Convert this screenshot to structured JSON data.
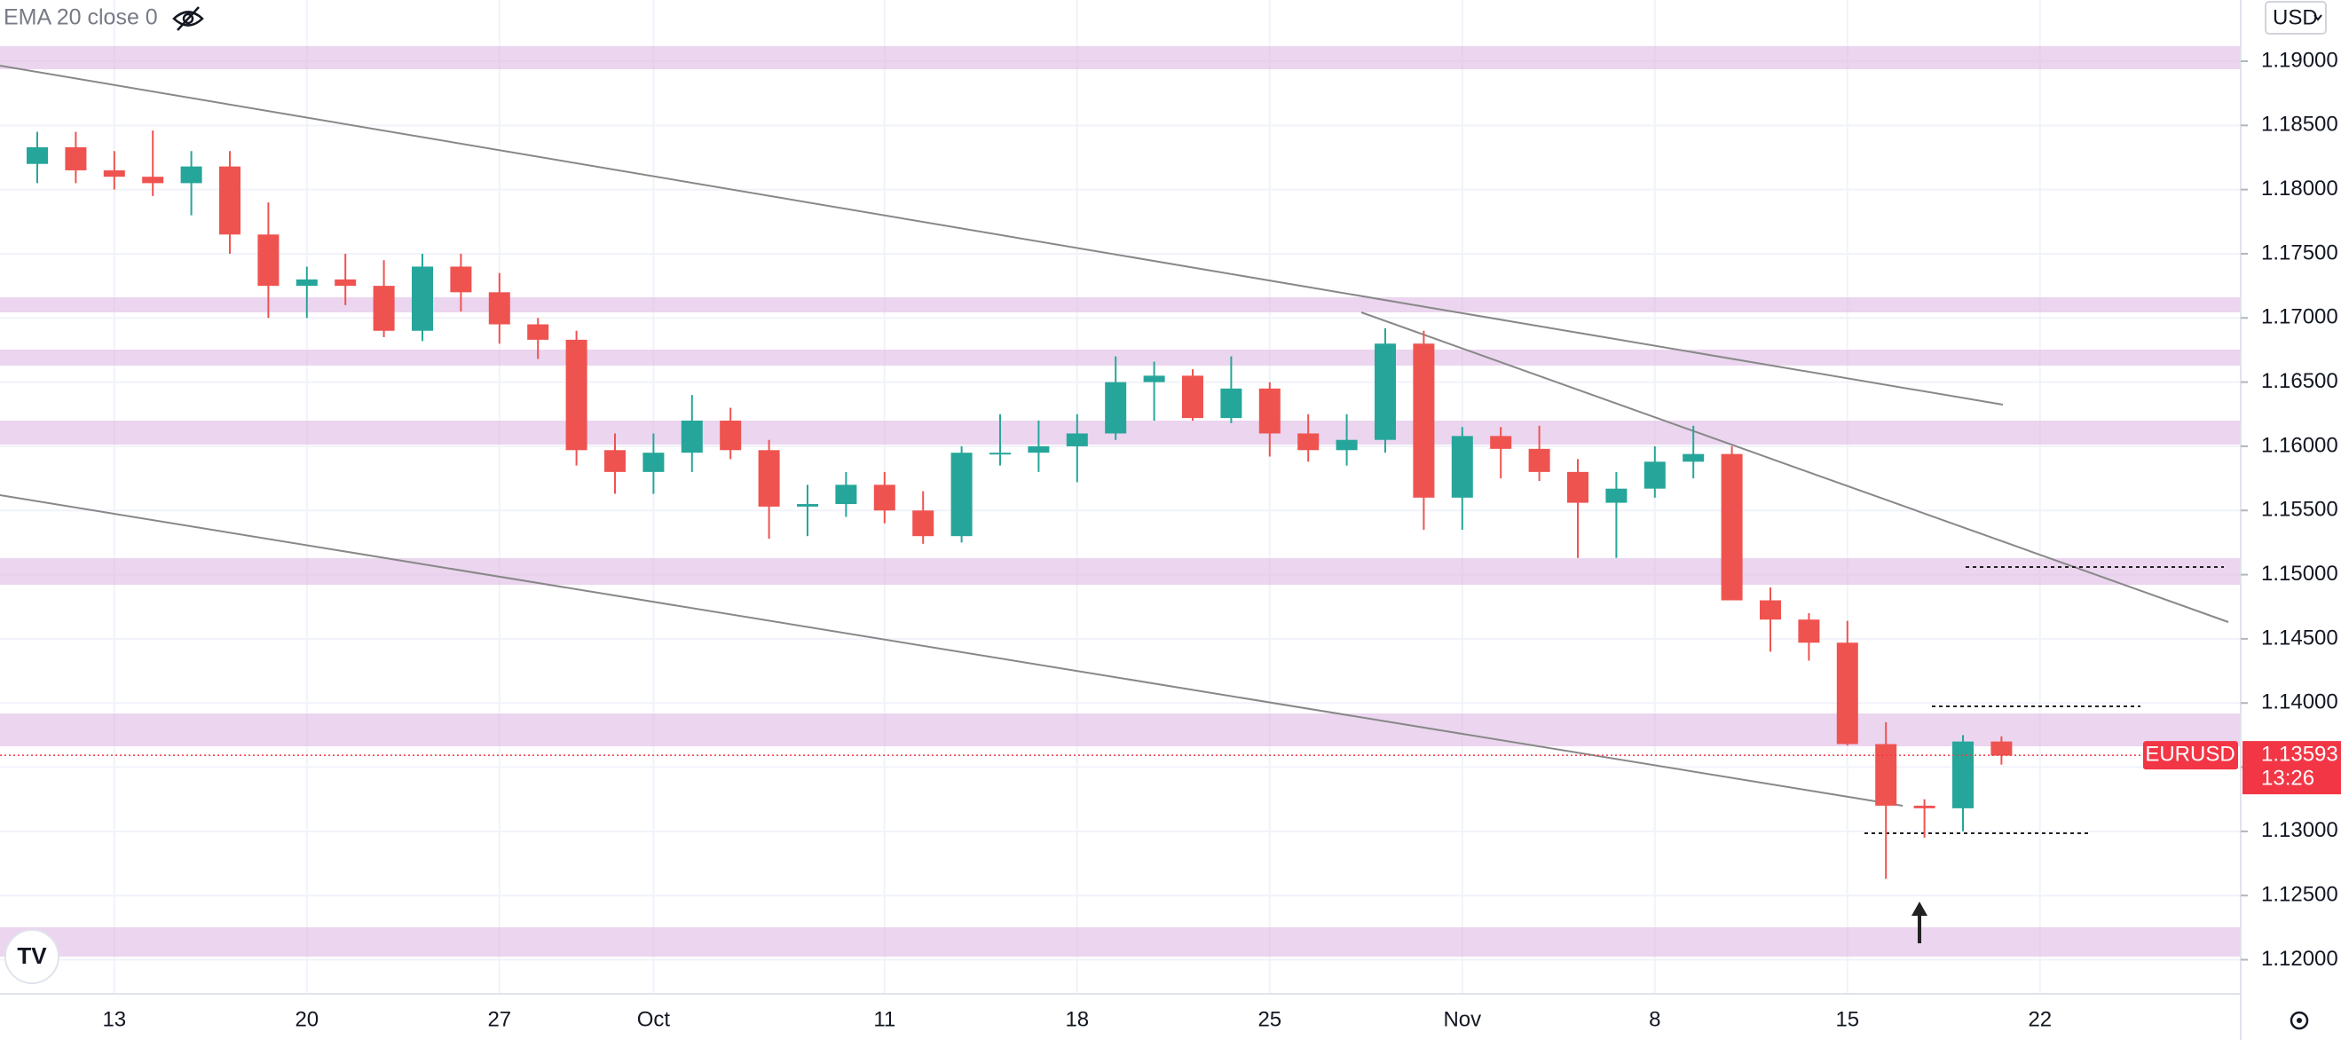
{
  "chart_data": {
    "type": "candlestick",
    "indicator": "EMA 20 close 0",
    "currency": "USD",
    "symbol": "EURUSD",
    "last_price": 1.13593,
    "countdown": "13:26",
    "up_color": "#26a69a",
    "down_color": "#ef5350",
    "categories": [
      null,
      null,
      "13",
      null,
      null,
      null,
      null,
      "20",
      null,
      null,
      null,
      null,
      "27",
      null,
      null,
      null,
      "Oct",
      null,
      null,
      null,
      null,
      null,
      "11",
      null,
      null,
      null,
      null,
      "18",
      null,
      null,
      null,
      null,
      "25",
      null,
      null,
      null,
      null,
      "Nov",
      null,
      null,
      null,
      null,
      "8",
      null,
      null,
      null,
      null,
      "15",
      null,
      null,
      null,
      null,
      "22"
    ],
    "open": [
      1.182,
      1.1833,
      1.1815,
      1.181,
      1.1805,
      1.1818,
      1.1765,
      1.1725,
      1.173,
      1.1725,
      1.169,
      1.174,
      1.172,
      1.1695,
      1.1683,
      1.1597,
      1.158,
      1.1595,
      1.162,
      1.1597,
      1.1553,
      1.1555,
      1.157,
      1.155,
      1.153,
      1.1595,
      1.1595,
      1.16,
      1.161,
      1.165,
      1.1655,
      1.1622,
      1.1645,
      1.161,
      1.1597,
      1.1605,
      1.168,
      1.156,
      1.1608,
      1.1598,
      1.158,
      1.1556,
      1.1567,
      1.1588,
      1.1594,
      1.148,
      1.1465,
      1.1447,
      1.1368,
      1.132,
      1.1318,
      1.137,
      null
    ],
    "high": [
      1.1845,
      1.1845,
      1.183,
      1.1846,
      1.183,
      1.183,
      1.179,
      1.174,
      1.175,
      1.1745,
      1.175,
      1.175,
      1.1735,
      1.17,
      1.169,
      1.161,
      1.161,
      1.164,
      1.163,
      1.1605,
      1.157,
      1.158,
      1.158,
      1.1565,
      1.16,
      1.1625,
      1.162,
      1.1625,
      1.167,
      1.1666,
      1.166,
      1.167,
      1.165,
      1.1625,
      1.1625,
      1.1692,
      1.169,
      1.1615,
      1.1615,
      1.1616,
      1.159,
      1.158,
      1.16,
      1.1616,
      1.16,
      1.149,
      1.147,
      1.1464,
      1.1385,
      1.1325,
      1.1375,
      1.1374,
      null
    ],
    "low": [
      1.1805,
      1.1805,
      1.18,
      1.1795,
      1.178,
      1.175,
      1.17,
      1.17,
      1.171,
      1.1685,
      1.1682,
      1.1705,
      1.168,
      1.1668,
      1.1585,
      1.1563,
      1.1563,
      1.158,
      1.159,
      1.1528,
      1.153,
      1.1545,
      1.154,
      1.1524,
      1.1525,
      1.1585,
      1.158,
      1.1572,
      1.1605,
      1.162,
      1.162,
      1.1618,
      1.1592,
      1.1588,
      1.1585,
      1.1595,
      1.1535,
      1.1535,
      1.1575,
      1.1573,
      1.1513,
      1.1513,
      1.156,
      1.1575,
      1.148,
      1.144,
      1.1433,
      1.1367,
      1.1263,
      1.1295,
      1.13,
      1.1352,
      null
    ],
    "close": [
      1.1833,
      1.1815,
      1.181,
      1.1805,
      1.1818,
      1.1765,
      1.1725,
      1.173,
      1.1725,
      1.169,
      1.174,
      1.172,
      1.1695,
      1.1683,
      1.1597,
      1.158,
      1.1595,
      1.162,
      1.1597,
      1.1553,
      1.1555,
      1.157,
      1.155,
      1.153,
      1.1595,
      1.1595,
      1.16,
      1.161,
      1.165,
      1.1655,
      1.1622,
      1.1645,
      1.161,
      1.1597,
      1.1605,
      1.168,
      1.156,
      1.1608,
      1.1598,
      1.158,
      1.1556,
      1.1567,
      1.1588,
      1.1594,
      1.148,
      1.1465,
      1.1447,
      1.1368,
      1.132,
      1.1318,
      1.137,
      1.1359,
      null
    ],
    "ylim": [
      1.11734,
      1.19477
    ],
    "yticks": [
      {
        "value": 1.12,
        "label": "1.12000"
      },
      {
        "value": 1.125,
        "label": "1.12500"
      },
      {
        "value": 1.13,
        "label": "1.13000"
      },
      {
        "value": 1.135,
        "label": "1.13500"
      },
      {
        "value": 1.14,
        "label": "1.14000"
      },
      {
        "value": 1.145,
        "label": "1.14500"
      },
      {
        "value": 1.15,
        "label": "1.15000"
      },
      {
        "value": 1.155,
        "label": "1.15500"
      },
      {
        "value": 1.16,
        "label": "1.16000"
      },
      {
        "value": 1.165,
        "label": "1.16500"
      },
      {
        "value": 1.17,
        "label": "1.17000"
      },
      {
        "value": 1.175,
        "label": "1.17500"
      },
      {
        "value": 1.18,
        "label": "1.18000"
      },
      {
        "value": 1.185,
        "label": "1.18500"
      },
      {
        "value": 1.19,
        "label": "1.19000"
      }
    ],
    "grid": true
  }
}
